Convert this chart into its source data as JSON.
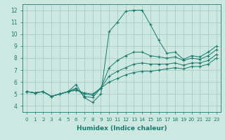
{
  "xlabel": "Humidex (Indice chaleur)",
  "ylabel": "",
  "xlim": [
    -0.5,
    23.5
  ],
  "ylim": [
    3.5,
    12.5
  ],
  "xticks": [
    0,
    1,
    2,
    3,
    4,
    5,
    6,
    7,
    8,
    9,
    10,
    11,
    12,
    13,
    14,
    15,
    16,
    17,
    18,
    19,
    20,
    21,
    22,
    23
  ],
  "yticks": [
    4,
    5,
    6,
    7,
    8,
    9,
    10,
    11,
    12
  ],
  "bg_color": "#cce8e0",
  "grid_color": "#aaccC4",
  "line_color": "#1a7a6e",
  "series": [
    [
      5.2,
      5.1,
      5.2,
      4.8,
      5.0,
      5.2,
      5.8,
      4.7,
      4.3,
      5.0,
      10.2,
      11.0,
      11.9,
      12.0,
      12.0,
      10.8,
      9.5,
      8.4,
      8.5,
      7.9,
      8.2,
      8.1,
      8.5,
      9.0
    ],
    [
      5.2,
      5.1,
      5.2,
      4.8,
      5.0,
      5.2,
      5.5,
      4.8,
      4.7,
      5.5,
      7.2,
      7.8,
      8.2,
      8.5,
      8.5,
      8.2,
      8.1,
      8.0,
      8.1,
      7.8,
      8.0,
      7.9,
      8.2,
      8.7
    ],
    [
      5.2,
      5.1,
      5.2,
      4.8,
      5.0,
      5.2,
      5.4,
      5.0,
      4.9,
      5.5,
      6.5,
      6.9,
      7.2,
      7.5,
      7.6,
      7.5,
      7.5,
      7.5,
      7.6,
      7.4,
      7.6,
      7.6,
      7.8,
      8.3
    ],
    [
      5.2,
      5.1,
      5.2,
      4.8,
      5.0,
      5.2,
      5.3,
      5.1,
      5.0,
      5.5,
      6.0,
      6.3,
      6.6,
      6.8,
      6.9,
      6.9,
      7.0,
      7.1,
      7.2,
      7.1,
      7.3,
      7.3,
      7.5,
      8.0
    ]
  ]
}
